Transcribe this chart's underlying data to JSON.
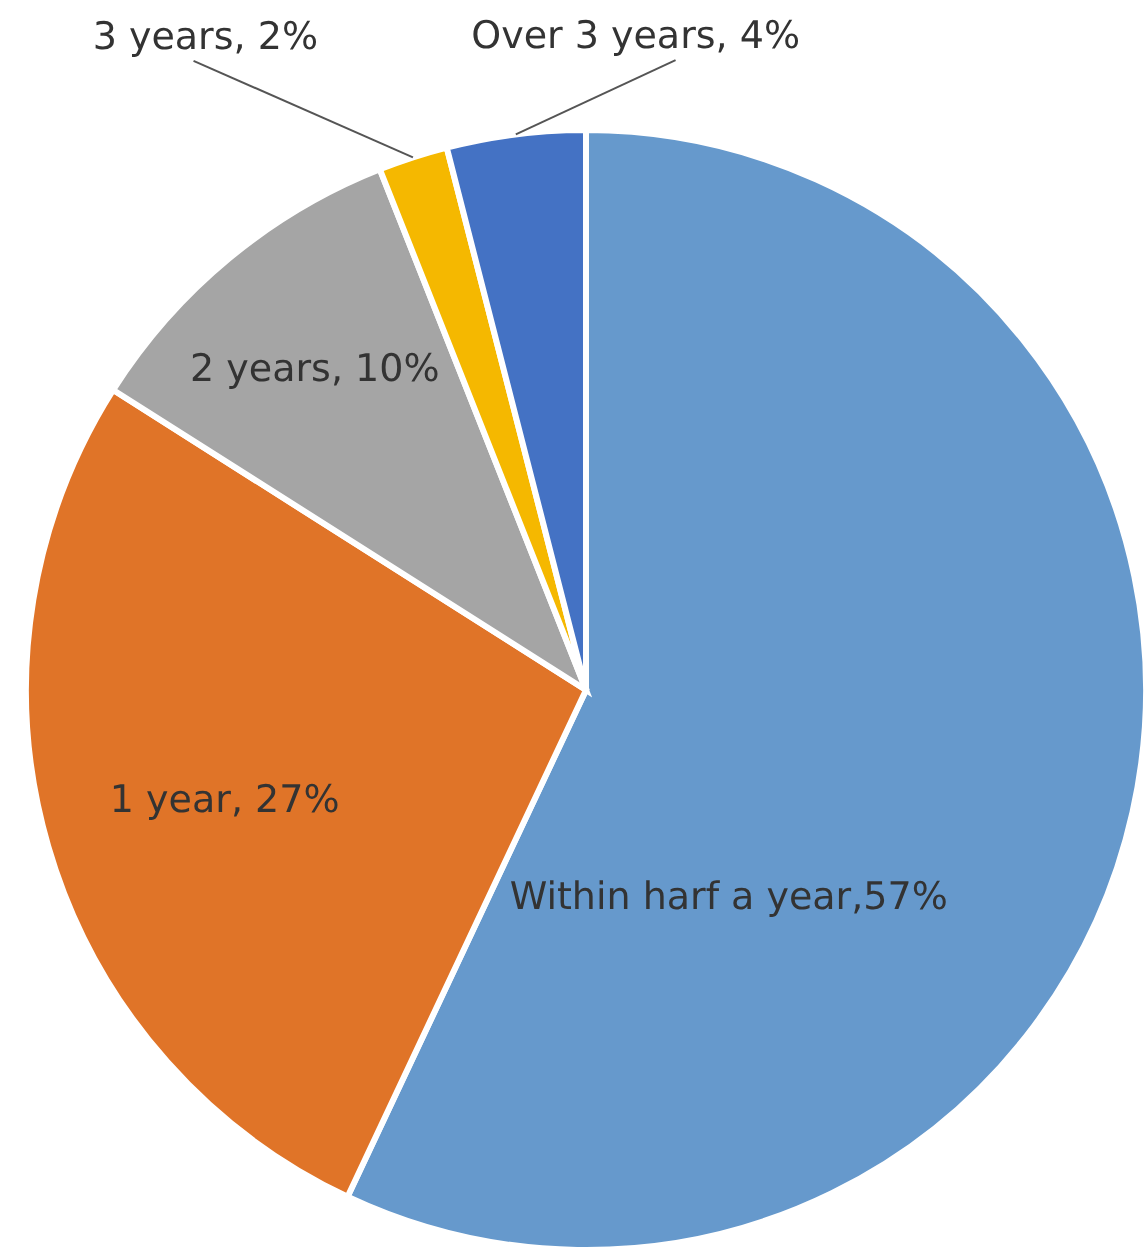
{
  "chart_data": {
    "type": "pie",
    "categories": [
      "Within harf a year",
      "1 year",
      "2 years",
      "3 years",
      "Over 3 years"
    ],
    "values": [
      57,
      27,
      10,
      2,
      4
    ],
    "colors": [
      "#6699cc",
      "#e07428",
      "#a5a5a5",
      "#f5b800",
      "#4472c4"
    ],
    "value_labels": [
      ",57%",
      ", 27%",
      ", 10%",
      ", 2%",
      ", 4%"
    ]
  }
}
